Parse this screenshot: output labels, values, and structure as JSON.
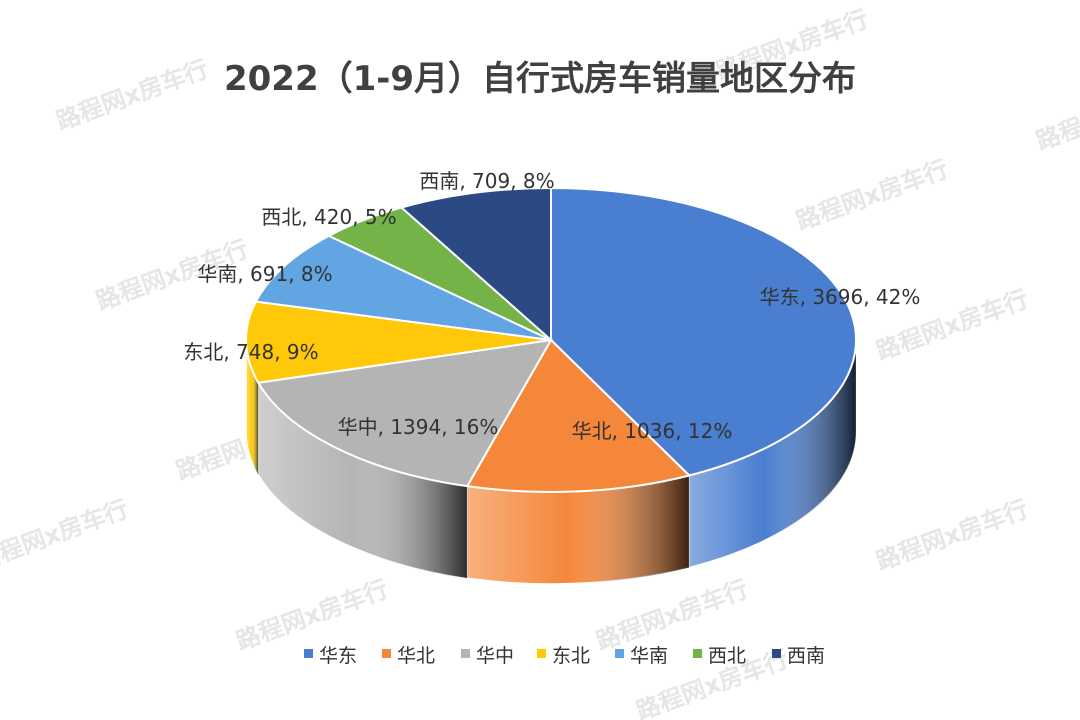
{
  "watermark": "路程网x房车行",
  "chart_data": {
    "type": "pie",
    "title": "2022（1-9月）自行式房车销量地区分布",
    "series": [
      {
        "name": "华东",
        "value": 3696,
        "percent": "42%",
        "color": "#4a7ed0"
      },
      {
        "name": "华北",
        "value": 1036,
        "percent": "12%",
        "color": "#f5873a"
      },
      {
        "name": "华中",
        "value": 1394,
        "percent": "16%",
        "color": "#b4b4b4"
      },
      {
        "name": "东北",
        "value": 748,
        "percent": "9%",
        "color": "#ffc90a"
      },
      {
        "name": "华南",
        "value": 691,
        "percent": "8%",
        "color": "#62a5e3"
      },
      {
        "name": "西北",
        "value": 420,
        "percent": "5%",
        "color": "#73b348"
      },
      {
        "name": "西南",
        "value": 709,
        "percent": "8%",
        "color": "#2b4a84"
      }
    ],
    "legend_position": "bottom",
    "style": "3d"
  }
}
